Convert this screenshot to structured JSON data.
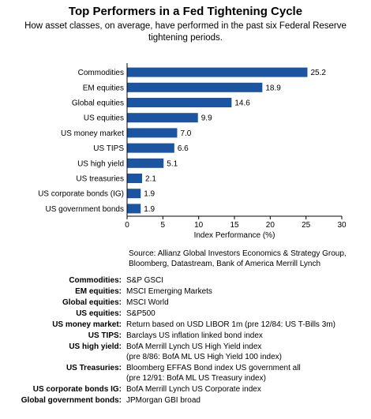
{
  "title": "Top Performers in a Fed Tightening Cycle",
  "subtitle": "How asset classes, on average, have performed in the past six Federal Reserve tightening periods.",
  "chart_data": {
    "type": "bar",
    "orientation": "horizontal",
    "categories": [
      "Commodities",
      "EM equities",
      "Global equities",
      "US equities",
      "US money market",
      "US TIPS",
      "US high yield",
      "US treasuries",
      "US corporate bonds (IG)",
      "US government bonds"
    ],
    "values": [
      25.2,
      18.9,
      14.6,
      9.9,
      7.0,
      6.6,
      5.1,
      2.1,
      1.9,
      1.9
    ],
    "value_labels": [
      "25.2",
      "18.9",
      "14.6",
      "9.9",
      "7.0",
      "6.6",
      "5.1",
      "2.1",
      "1.9",
      "1.9"
    ],
    "xlabel": "Index Performance (%)",
    "xlim": [
      0,
      30
    ],
    "xticks": [
      "0",
      "5",
      "10",
      "15",
      "20",
      "25",
      "30"
    ],
    "grid": false,
    "bar_color": "#1b55a1"
  },
  "source": "Source: Allianz Global Investors Economics & Strategy Group, Bloomberg, Datastream, Bank of America Merrill Lynch",
  "definitions": [
    {
      "term": "Commodities:",
      "lines": [
        "S&P GSCI"
      ]
    },
    {
      "term": "EM equities:",
      "lines": [
        "MSCI Emerging Markets"
      ]
    },
    {
      "term": "Global equities:",
      "lines": [
        "MSCI World"
      ]
    },
    {
      "term": "US equities:",
      "lines": [
        "S&P500"
      ]
    },
    {
      "term": "US money market:",
      "lines": [
        "Return based on USD LIBOR 1m (pre 12/84: US T-Bills 3m)"
      ]
    },
    {
      "term": "US TIPS:",
      "lines": [
        "Barclays US inflation linked bond index"
      ]
    },
    {
      "term": "US high yield:",
      "lines": [
        "BofA Merrill Lynch US High Yield index",
        "(pre 8/86: BofA ML US High Yield 100 index)"
      ]
    },
    {
      "term": "US Treasuries:",
      "lines": [
        "Bloomberg EFFAS Bond index US government all",
        "(pre 12/91: BofA ML US Treasury index)"
      ]
    },
    {
      "term": "US corporate bonds IG:",
      "lines": [
        "BofA Merrill Lynch US Corporate index"
      ]
    },
    {
      "term": "Global government bonds:",
      "lines": [
        "JPMorgan GBI broad"
      ]
    }
  ]
}
